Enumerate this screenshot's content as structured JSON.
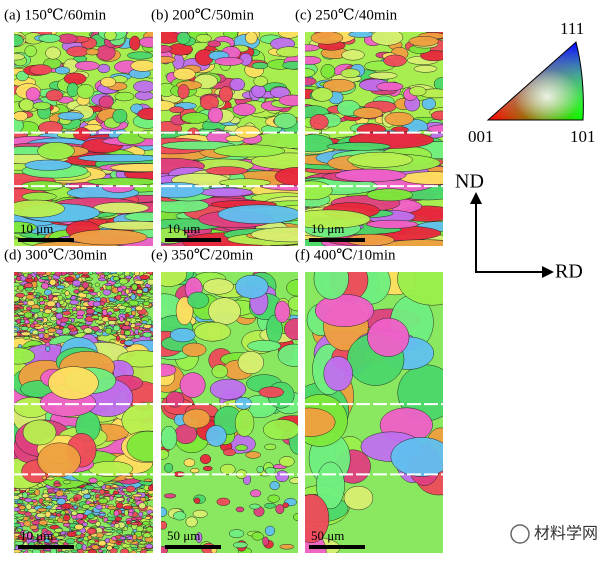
{
  "panels": [
    {
      "label": "(a) 150℃/60min",
      "scale_bar": "10 μm"
    },
    {
      "label": "(b) 200℃/50min",
      "scale_bar": "10 μm"
    },
    {
      "label": "(c) 250℃/40min",
      "scale_bar": "10 μm"
    },
    {
      "label": "(d) 300℃/30min",
      "scale_bar": "10 μm"
    },
    {
      "label": "(e) 350℃/20min",
      "scale_bar": "50 μm"
    },
    {
      "label": "(f) 400℃/10min",
      "scale_bar": "50 μm"
    }
  ],
  "ipf_legend": {
    "top": "111",
    "left": "001",
    "right": "101"
  },
  "axes": {
    "vertical": "ND",
    "horizontal": "RD"
  },
  "watermark": "材料学网"
}
